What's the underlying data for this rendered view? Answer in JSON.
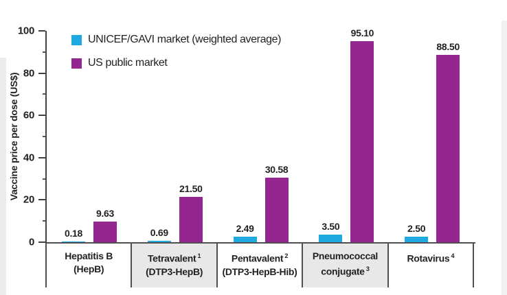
{
  "chart_data": {
    "type": "bar",
    "title": "",
    "xlabel": "",
    "ylabel": "Vaccine price per dose (US$)",
    "ylim": [
      0,
      100
    ],
    "ytick_major": [
      0,
      20,
      40,
      60,
      80,
      100
    ],
    "ytick_minor": [
      10,
      30,
      50,
      70,
      90
    ],
    "grid": false,
    "legend_position": "top-left-inside",
    "categories": [
      {
        "line1": "Hepatitis B",
        "sup1": "",
        "line2": "(HepB)",
        "sup2": "",
        "shaded": false
      },
      {
        "line1": "Tetravalent",
        "sup1": "1",
        "line2": "(DTP3-HepB)",
        "sup2": "",
        "shaded": true
      },
      {
        "line1": "Pentavalent",
        "sup1": "2",
        "line2": "(DTP3-HepB-Hib)",
        "sup2": "",
        "shaded": false
      },
      {
        "line1": "Pneumococcal",
        "sup1": "",
        "line2": "conjugate",
        "sup2": "3",
        "shaded": true
      },
      {
        "line1": "Rotavirus",
        "sup1": "4",
        "line2": "",
        "sup2": "",
        "shaded": false
      }
    ],
    "series": [
      {
        "name": "UNICEF/GAVI market (weighted average)",
        "color": "#1FA9E1",
        "values": [
          0.18,
          0.69,
          2.49,
          3.5,
          2.5
        ],
        "value_labels": [
          "0.18",
          "0.69",
          "2.49",
          "3.50",
          "2.50"
        ]
      },
      {
        "name": "US public market",
        "color": "#93278F",
        "values": [
          9.63,
          21.5,
          30.58,
          95.1,
          88.5
        ],
        "value_labels": [
          "9.63",
          "21.50",
          "30.58",
          "95.10",
          "88.50"
        ]
      }
    ]
  },
  "colors": {
    "axis": "#414042",
    "divider": "#4F4F51",
    "text": "#231F20",
    "shaded_box": "#E8E8E8",
    "page_edge": "#ECECEC"
  }
}
